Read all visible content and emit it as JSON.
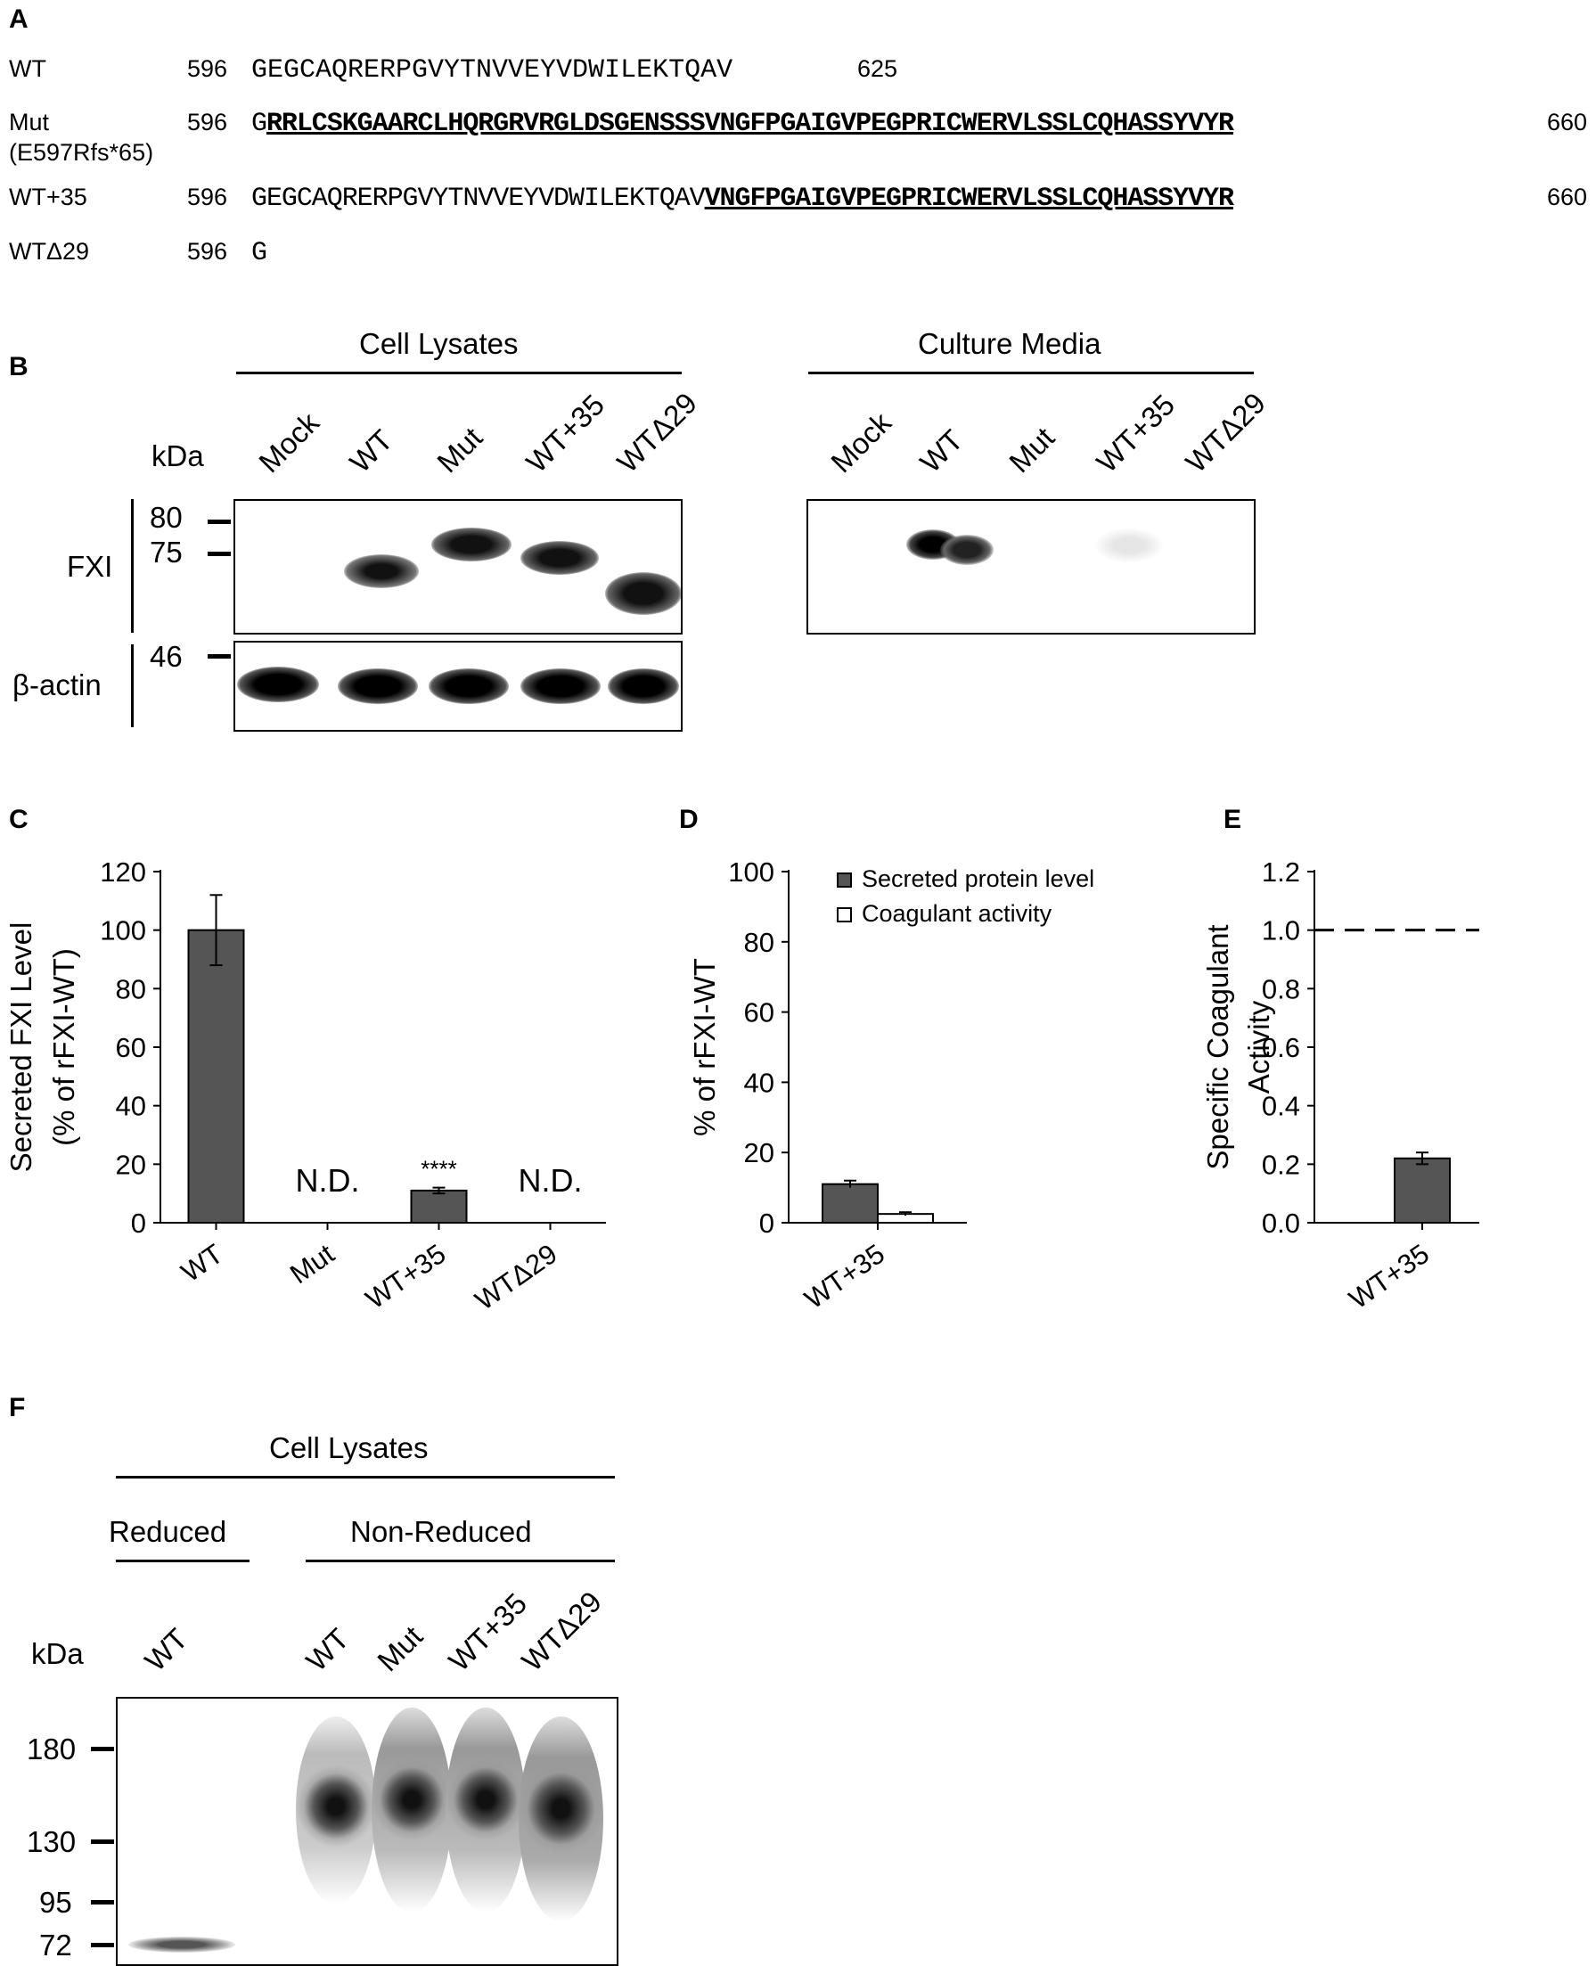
{
  "panels": [
    "A",
    "B",
    "C",
    "D",
    "E",
    "F"
  ],
  "sequences": [
    {
      "name": "WT",
      "sub": "",
      "start": "596",
      "normal": "GEGCAQRERPGVYTNVVEYVDWILEKTQAV",
      "mutant": "",
      "end": "625"
    },
    {
      "name": "Mut",
      "sub": "(E597Rfs*65)",
      "start": "596",
      "normal": "G",
      "mutant": "RRLCSKGAARCLHQRGRVRGLDSGENSSSVNGFPGAIGVPEGPRICWERVLSSLCQHASSYVYR",
      "end": "660"
    },
    {
      "name": "WT+35",
      "sub": "",
      "start": "596",
      "normal": "GEGCAQRERPGVYTNVVEYVDWILEKTQAV",
      "mutant": "VNGFPGAIGVPEGPRICWERVLSSLCQHASSYVYR",
      "end": "660"
    },
    {
      "name": "WTΔ29",
      "sub": "",
      "start": "596",
      "normal": "G",
      "mutant": "",
      "end": ""
    }
  ],
  "blot_b": {
    "lysates_title": "Cell Lysates",
    "media_title": "Culture Media",
    "kda_label": "kDa",
    "lanes": [
      "Mock",
      "WT",
      "Mut",
      "WT+35",
      "WTΔ29"
    ],
    "markers": [
      "80",
      "75",
      "46"
    ],
    "fxi_label": "FXI",
    "actin_label": "β-actin"
  },
  "chart_data": [
    {
      "type": "bar",
      "ylabel": "Secreted FXI Level\n(% of rFXI-WT)",
      "categories": [
        "WT",
        "Mut",
        "WT+35",
        "WTΔ29"
      ],
      "values": [
        100,
        null,
        11,
        null
      ],
      "errors": [
        12,
        null,
        1,
        null
      ],
      "annotations": [
        "",
        "N.D.",
        "****",
        "N.D."
      ],
      "ylim": [
        0,
        120
      ],
      "yticks": [
        "0",
        "20",
        "40",
        "60",
        "80",
        "100",
        "120"
      ],
      "color": "#555555"
    },
    {
      "type": "bar",
      "ylabel": "% of rFXI-WT",
      "categories": [
        "WT+35"
      ],
      "series": [
        {
          "name": "Secreted protein level",
          "values": [
            11
          ],
          "errors": [
            1
          ],
          "color": "#555555"
        },
        {
          "name": "Coagulant activity",
          "values": [
            2.5
          ],
          "errors": [
            0.5
          ],
          "color": "#ffffff"
        }
      ],
      "ylim": [
        0,
        100
      ],
      "yticks": [
        "0",
        "20",
        "40",
        "60",
        "80",
        "100"
      ],
      "legend": "top-right"
    },
    {
      "type": "bar",
      "ylabel": "Specific Coagulant\nActivity",
      "categories": [
        "WT+35"
      ],
      "values": [
        0.22
      ],
      "errors": [
        0.02
      ],
      "reference_line": 1.0,
      "ylim": [
        0,
        1.2
      ],
      "yticks": [
        "0.0",
        "0.2",
        "0.4",
        "0.6",
        "0.8",
        "1.0",
        "1.2"
      ],
      "color": "#555555"
    }
  ],
  "blot_f": {
    "title": "Cell Lysates",
    "reduced_label": "Reduced",
    "nonreduced_label": "Non-Reduced",
    "kda_label": "kDa",
    "lanes": [
      "WT",
      "WT",
      "Mut",
      "WT+35",
      "WTΔ29"
    ],
    "markers": [
      "180",
      "130",
      "95",
      "72"
    ]
  }
}
